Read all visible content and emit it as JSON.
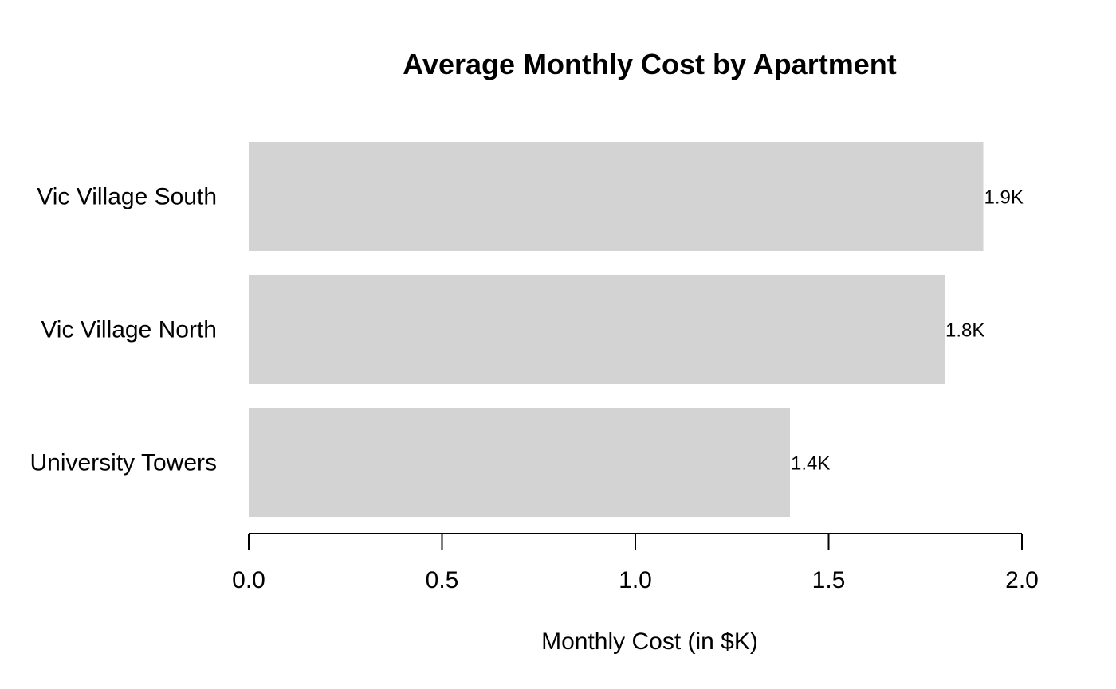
{
  "chart_data": {
    "type": "bar",
    "orientation": "horizontal",
    "title": "Average Monthly Cost by Apartment",
    "xlabel": "Monthly Cost (in $K)",
    "ylabel": "",
    "categories": [
      "University Towers",
      "Vic Village North",
      "Vic Village South"
    ],
    "values": [
      1.4,
      1.8,
      1.9
    ],
    "data_labels": [
      "1.4K",
      "1.8K",
      "1.9K"
    ],
    "xlim": [
      0,
      2
    ],
    "x_ticks": [
      "0.0",
      "0.5",
      "1.0",
      "1.5",
      "2.0"
    ],
    "bar_color": "#d3d3d3",
    "grid": false,
    "legend": "none"
  }
}
